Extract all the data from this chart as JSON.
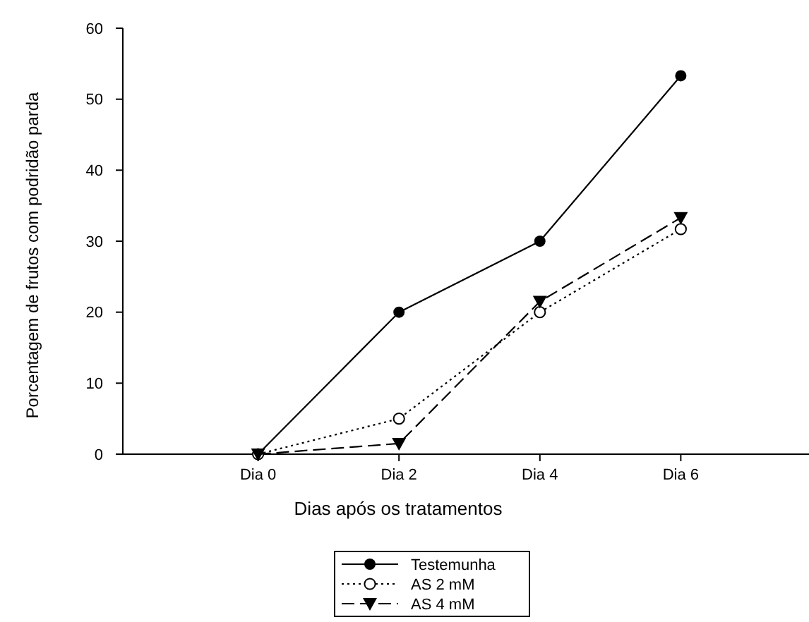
{
  "chart_data": {
    "type": "line",
    "xlabel": "Dias após os tratamentos",
    "ylabel": "Porcentagem de frutos com podridão parda",
    "categories": [
      "Dia 0",
      "Dia 2",
      "Dia 4",
      "Dia 6"
    ],
    "ylim": [
      0,
      60
    ],
    "yticks": [
      0,
      10,
      20,
      30,
      40,
      50,
      60
    ],
    "grid": false,
    "legend": "bottom",
    "series": [
      {
        "name": "Testemunha",
        "color": "#000000",
        "marker": "circle",
        "line_style": "solid",
        "values": [
          0,
          20,
          30,
          53.3
        ]
      },
      {
        "name": "AS 2 mM",
        "color": "#000000",
        "marker": "circle_open",
        "line_style": "dotted",
        "values": [
          0,
          5,
          20,
          31.7
        ]
      },
      {
        "name": "AS 4 mM",
        "color": "#000000",
        "marker": "triangle",
        "line_style": "dashed",
        "values": [
          0,
          1.5,
          21.5,
          33.3
        ]
      }
    ]
  }
}
